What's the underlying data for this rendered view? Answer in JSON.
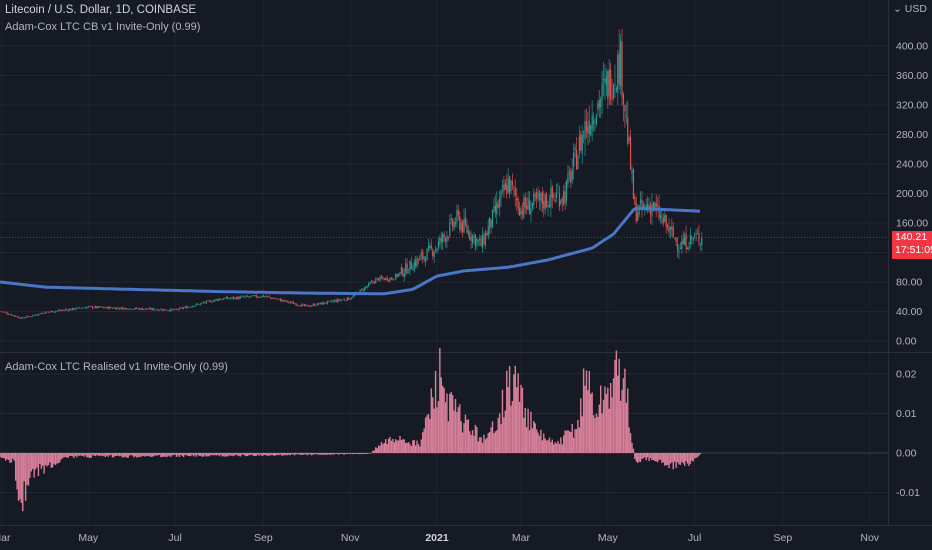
{
  "header": {
    "symbol_line": "Litecoin / U.S. Dollar, 1D, COINBASE",
    "indicator_main": "Adam-Cox LTC CB v1 Invite-Only (0.99)",
    "indicator_sub": "Adam-Cox LTC Realised v1 Invite-Only (0.99)"
  },
  "axis_settings": {
    "currency_label": "USD",
    "icon": "chevron-down-icon"
  },
  "price_tag": {
    "price": "140.21",
    "countdown": "17:51:05",
    "color": "#f23645"
  },
  "colors": {
    "background": "#161a25",
    "up_candle": "#26a69a",
    "down_candle": "#ef5350",
    "cost_basis_line": "#4a76c6",
    "realised_bars": "#d8809a"
  },
  "chart_data": [
    {
      "type": "candlestick",
      "name": "Litecoin / U.S. Dollar, 1D, COINBASE",
      "y_ticks": [
        "400.00",
        "360.00",
        "320.00",
        "280.00",
        "240.00",
        "200.00",
        "160.00",
        "120.00",
        "80.00",
        "40.00",
        "0.00"
      ],
      "ylim": [
        0,
        420
      ],
      "x_ticks": [
        "Mar",
        "May",
        "Jul",
        "Sep",
        "Nov",
        "2021",
        "Mar",
        "May",
        "Jul",
        "Sep",
        "Nov"
      ],
      "grid": true,
      "close_price_approx": [
        [
          "2020-03-01",
          40
        ],
        [
          "2020-03-15",
          31
        ],
        [
          "2020-04-01",
          39
        ],
        [
          "2020-05-01",
          46
        ],
        [
          "2020-06-01",
          44
        ],
        [
          "2020-07-01",
          42
        ],
        [
          "2020-08-01",
          57
        ],
        [
          "2020-09-01",
          61
        ],
        [
          "2020-10-01",
          47
        ],
        [
          "2020-11-01",
          58
        ],
        [
          "2020-11-20",
          84
        ],
        [
          "2020-12-01",
          85
        ],
        [
          "2021-01-01",
          128
        ],
        [
          "2021-01-15",
          165
        ],
        [
          "2021-02-01",
          130
        ],
        [
          "2021-02-20",
          215
        ],
        [
          "2021-03-01",
          180
        ],
        [
          "2021-04-01",
          200
        ],
        [
          "2021-04-15",
          290
        ],
        [
          "2021-05-10",
          380
        ],
        [
          "2021-05-20",
          175
        ],
        [
          "2021-06-01",
          185
        ],
        [
          "2021-06-20",
          130
        ],
        [
          "2021-07-01",
          140
        ]
      ],
      "cost_basis_series": [
        [
          "2020-02-20",
          82
        ],
        [
          "2020-04-01",
          73
        ],
        [
          "2020-06-01",
          70
        ],
        [
          "2020-08-01",
          67
        ],
        [
          "2020-10-01",
          65
        ],
        [
          "2020-11-25",
          64
        ],
        [
          "2020-12-15",
          70
        ],
        [
          "2021-01-01",
          88
        ],
        [
          "2021-01-20",
          95
        ],
        [
          "2021-02-20",
          100
        ],
        [
          "2021-03-20",
          110
        ],
        [
          "2021-04-20",
          126
        ],
        [
          "2021-05-05",
          145
        ],
        [
          "2021-05-20",
          180
        ],
        [
          "2021-06-01",
          179
        ],
        [
          "2021-07-05",
          176
        ]
      ]
    },
    {
      "type": "bar",
      "name": "Adam-Cox LTC Realised v1 Invite-Only (0.99)",
      "y_ticks": [
        "0.02",
        "0.01",
        "0.00",
        "-0.01"
      ],
      "ylim": [
        -0.017,
        0.024
      ],
      "grid": true,
      "profile_approx": [
        [
          "2020-02-20",
          -0.001
        ],
        [
          "2020-03-10",
          -0.002
        ],
        [
          "2020-03-14",
          -0.014
        ],
        [
          "2020-03-20",
          -0.006
        ],
        [
          "2020-04-15",
          -0.001
        ],
        [
          "2020-09-01",
          -0.0006
        ],
        [
          "2020-11-15",
          -0.0002
        ],
        [
          "2020-11-22",
          0.002
        ],
        [
          "2020-12-05",
          0.004
        ],
        [
          "2020-12-20",
          0.002
        ],
        [
          "2021-01-03",
          0.02
        ],
        [
          "2021-01-10",
          0.012
        ],
        [
          "2021-01-25",
          0.006
        ],
        [
          "2021-02-05",
          0.003
        ],
        [
          "2021-02-20",
          0.016
        ],
        [
          "2021-02-25",
          0.018
        ],
        [
          "2021-03-10",
          0.006
        ],
        [
          "2021-03-25",
          0.002
        ],
        [
          "2021-04-10",
          0.007
        ],
        [
          "2021-04-16",
          0.02
        ],
        [
          "2021-04-22",
          0.01
        ],
        [
          "2021-05-10",
          0.021
        ],
        [
          "2021-05-15",
          0.012
        ],
        [
          "2021-05-20",
          -0.002
        ],
        [
          "2021-06-01",
          -0.0015
        ],
        [
          "2021-06-21",
          -0.004
        ],
        [
          "2021-07-05",
          -0.0005
        ]
      ]
    }
  ]
}
